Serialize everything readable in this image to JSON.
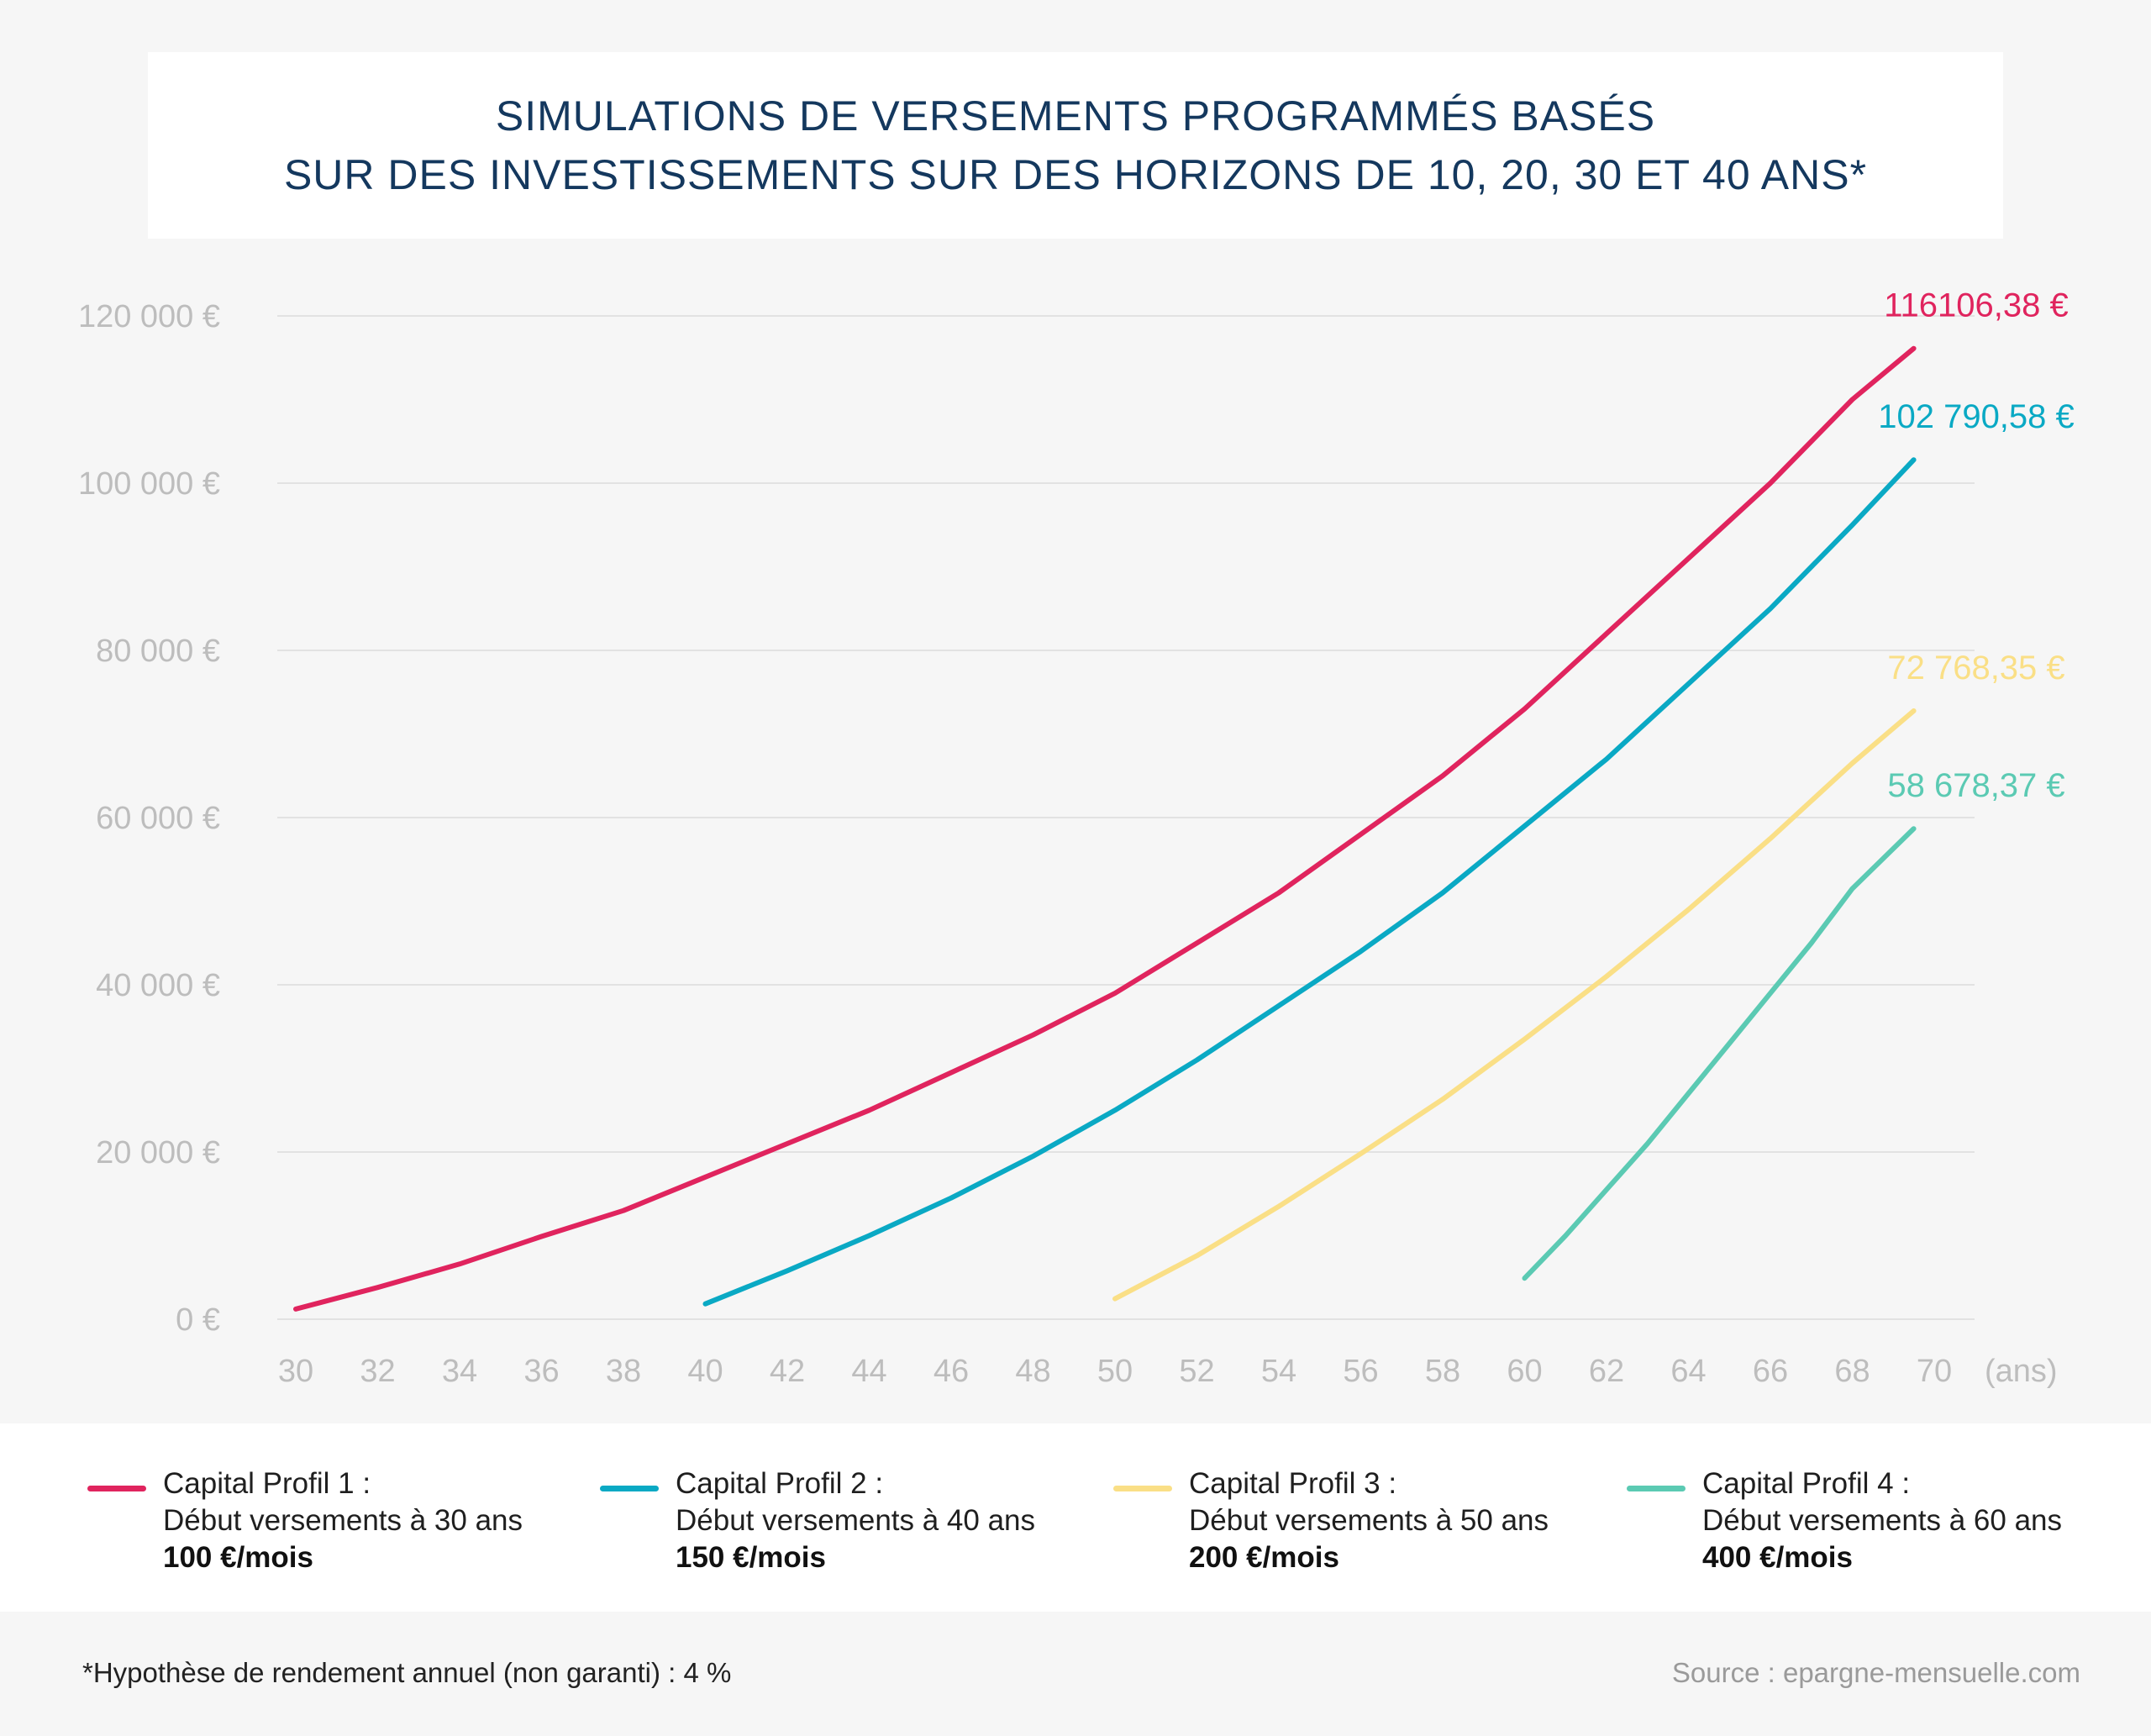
{
  "title": {
    "line1": "SIMULATIONS DE VERSEMENTS PROGRAMMÉS BASÉS",
    "line2": "SUR DES INVESTISSEMENTS SUR DES HORIZONS DE 10, 20, 30 ET 40 ANS*"
  },
  "colors": {
    "title": "#14385e",
    "grid": "#e2e2e2",
    "tick_label": "#bdbdbd"
  },
  "chart_data": {
    "type": "line",
    "title": "SIMULATIONS DE VERSEMENTS PROGRAMMÉS BASÉS SUR DES INVESTISSEMENTS SUR DES HORIZONS DE 10, 20, 30 ET 40 ANS*",
    "xlabel": "(ans)",
    "ylabel": "",
    "xlim": [
      30,
      70
    ],
    "ylim": [
      0,
      120000
    ],
    "grid": true,
    "legend_position": "bottom",
    "x_ticks": [
      "30",
      "32",
      "34",
      "36",
      "38",
      "40",
      "42",
      "44",
      "46",
      "48",
      "50",
      "52",
      "54",
      "56",
      "58",
      "60",
      "62",
      "64",
      "66",
      "68",
      "70"
    ],
    "y_ticks": [
      {
        "value": 0,
        "label": "0 €"
      },
      {
        "value": 20000,
        "label": "20 000 €"
      },
      {
        "value": 40000,
        "label": "40 000 €"
      },
      {
        "value": 60000,
        "label": "60 000 €"
      },
      {
        "value": 80000,
        "label": "80 000 €"
      },
      {
        "value": 100000,
        "label": "100 000 €"
      },
      {
        "value": 120000,
        "label": "120 000 €"
      }
    ],
    "series": [
      {
        "name": "Capital Profil 1",
        "color": "#e0245e",
        "end_label": "116106,38 €",
        "x": [
          30,
          32,
          34,
          36,
          38,
          40,
          42,
          44,
          46,
          48,
          50,
          52,
          54,
          56,
          58,
          60,
          62,
          64,
          66,
          68,
          69.5
        ],
        "y": [
          1220,
          3800,
          6600,
          9900,
          13000,
          17000,
          21000,
          25000,
          29500,
          34000,
          39000,
          45000,
          51000,
          58000,
          65000,
          73000,
          82000,
          91000,
          100000,
          110000,
          116106.38
        ]
      },
      {
        "name": "Capital Profil 2",
        "color": "#0aa9c4",
        "end_label": "102 790,58 €",
        "x": [
          40,
          42,
          44,
          46,
          48,
          50,
          52,
          54,
          56,
          58,
          60,
          62,
          64,
          66,
          68,
          69.5
        ],
        "y": [
          1840,
          5800,
          10000,
          14500,
          19500,
          25000,
          31000,
          37500,
          44000,
          51000,
          59000,
          67000,
          76000,
          85000,
          95000,
          102790.58
        ]
      },
      {
        "name": "Capital Profil 3",
        "color": "#fadf86",
        "end_label": "72 768,35 €",
        "x": [
          50,
          52,
          54,
          56,
          58,
          60,
          62,
          64,
          66,
          68,
          69.5
        ],
        "y": [
          2450,
          7600,
          13500,
          19800,
          26300,
          33500,
          41000,
          49000,
          57500,
          66500,
          72768.35
        ]
      },
      {
        "name": "Capital Profil 4",
        "color": "#5bcab3",
        "end_label": "58 678,37 €",
        "x": [
          60,
          61,
          62,
          63,
          64,
          65,
          66,
          67,
          68,
          69.5
        ],
        "y": [
          4900,
          10000,
          15500,
          21000,
          27000,
          33000,
          39000,
          45000,
          51500,
          58678.37
        ]
      }
    ]
  },
  "legend": [
    {
      "title": "Capital Profil 1 :",
      "detail": "Début versements à 30 ans",
      "rate": "100 €/mois",
      "color": "#e0245e"
    },
    {
      "title": "Capital Profil 2 :",
      "detail": "Début versements à 40 ans",
      "rate": "150 €/mois",
      "color": "#0aa9c4"
    },
    {
      "title": "Capital Profil 3 :",
      "detail": "Début versements à 50 ans",
      "rate": "200 €/mois",
      "color": "#fadf86"
    },
    {
      "title": "Capital Profil 4 :",
      "detail": "Début versements à 60 ans",
      "rate": "400 €/mois",
      "color": "#5bcab3"
    }
  ],
  "footnote": "*Hypothèse de rendement annuel (non garanti) : 4 %",
  "source": "Source : epargne-mensuelle.com"
}
